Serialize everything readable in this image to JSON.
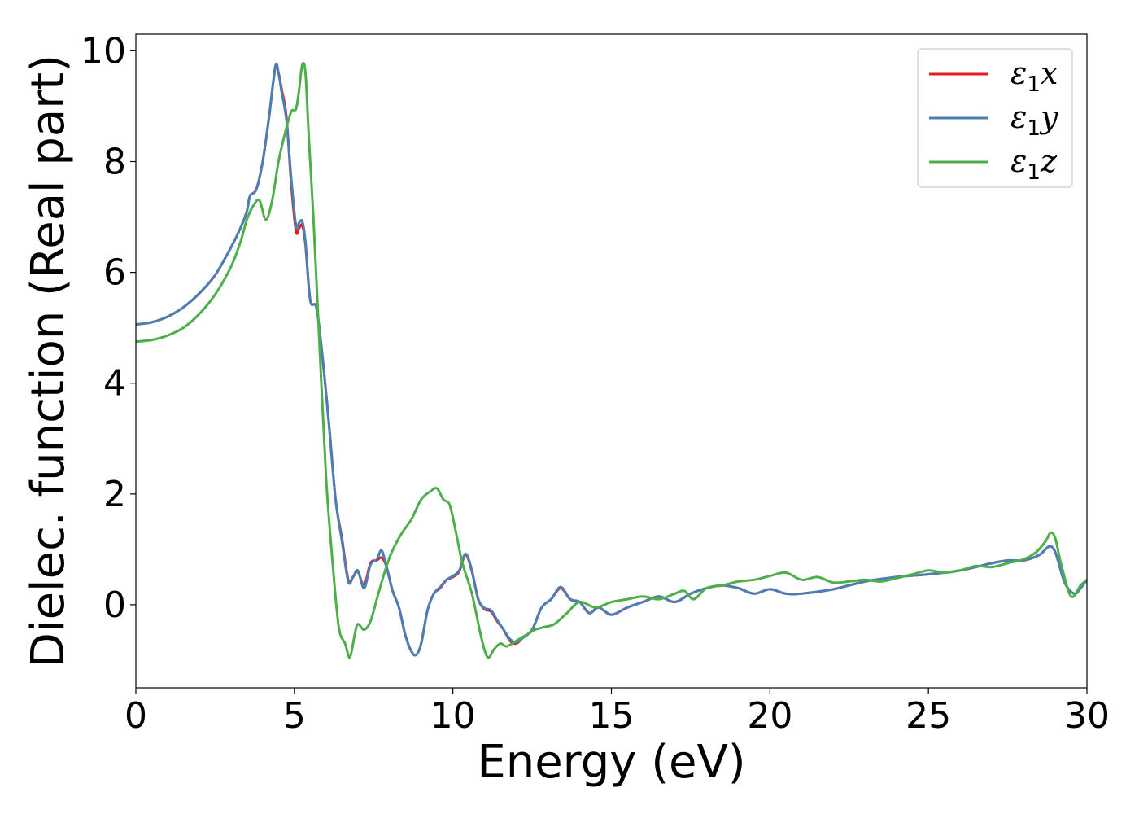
{
  "chart_data": {
    "type": "line",
    "title": "",
    "xlabel": "Energy (eV)",
    "ylabel": "Dielec. function (Real part)",
    "xlim": [
      0,
      30
    ],
    "ylim": [
      -1.5,
      10.3
    ],
    "xticks": [
      0,
      5,
      10,
      15,
      20,
      25,
      30
    ],
    "yticks": [
      0,
      2,
      4,
      6,
      8,
      10
    ],
    "grid": false,
    "legend_position": "top-right",
    "series": [
      {
        "name": "ε1x",
        "legend": {
          "base": "ε",
          "sub": "1",
          "tail": "x"
        },
        "color": "#e41a1c",
        "x": [
          0,
          0.5,
          1,
          1.5,
          2,
          2.5,
          3,
          3.3,
          3.5,
          3.6,
          3.8,
          4.0,
          4.2,
          4.4,
          4.5,
          4.6,
          4.75,
          4.9,
          5.05,
          5.15,
          5.25,
          5.35,
          5.5,
          5.7,
          5.9,
          6.1,
          6.3,
          6.5,
          6.7,
          6.85,
          7.0,
          7.2,
          7.4,
          7.6,
          7.75,
          7.9,
          8.1,
          8.3,
          8.5,
          8.7,
          8.85,
          9.0,
          9.2,
          9.4,
          9.6,
          9.8,
          10.0,
          10.2,
          10.4,
          10.6,
          10.8,
          11.0,
          11.2,
          11.4,
          11.6,
          11.8,
          12.0,
          12.2,
          12.5,
          12.8,
          13.1,
          13.4,
          13.7,
          14.0,
          14.3,
          14.6,
          15.0,
          15.5,
          16.0,
          16.5,
          17.0,
          17.5,
          18.0,
          18.5,
          19.0,
          19.5,
          20.0,
          20.5,
          21.0,
          22.0,
          23.0,
          24.0,
          25.0,
          26.0,
          27.0,
          27.5,
          28.0,
          28.5,
          28.8,
          29.0,
          29.3,
          29.6,
          29.8,
          30.0
        ],
        "y": [
          5.06,
          5.1,
          5.2,
          5.37,
          5.62,
          5.95,
          6.45,
          6.8,
          7.1,
          7.38,
          7.5,
          8.0,
          8.8,
          9.7,
          9.6,
          9.3,
          8.8,
          7.6,
          6.75,
          6.8,
          6.85,
          6.5,
          5.5,
          5.35,
          4.4,
          3.2,
          1.9,
          1.2,
          0.45,
          0.5,
          0.6,
          0.35,
          0.75,
          0.8,
          0.85,
          0.7,
          0.25,
          -0.05,
          -0.55,
          -0.85,
          -0.9,
          -0.7,
          -0.1,
          0.2,
          0.3,
          0.45,
          0.5,
          0.6,
          0.9,
          0.6,
          0.1,
          -0.08,
          -0.12,
          -0.3,
          -0.45,
          -0.65,
          -0.7,
          -0.6,
          -0.45,
          -0.05,
          0.1,
          0.3,
          0.1,
          0.05,
          -0.15,
          -0.05,
          -0.18,
          -0.05,
          0.05,
          0.15,
          0.05,
          0.2,
          0.3,
          0.35,
          0.3,
          0.2,
          0.28,
          0.2,
          0.2,
          0.28,
          0.42,
          0.5,
          0.55,
          0.62,
          0.75,
          0.8,
          0.8,
          0.9,
          1.05,
          0.95,
          0.4,
          0.2,
          0.3,
          0.45
        ]
      },
      {
        "name": "ε1y",
        "legend": {
          "base": "ε",
          "sub": "1",
          "tail": "y"
        },
        "color": "#4a7fb5",
        "x": [
          0,
          0.5,
          1,
          1.5,
          2,
          2.5,
          3,
          3.3,
          3.5,
          3.6,
          3.8,
          4.0,
          4.2,
          4.4,
          4.5,
          4.6,
          4.75,
          4.9,
          5.05,
          5.15,
          5.25,
          5.35,
          5.5,
          5.7,
          5.9,
          6.1,
          6.3,
          6.5,
          6.7,
          6.85,
          7.0,
          7.2,
          7.4,
          7.6,
          7.75,
          7.9,
          8.1,
          8.3,
          8.5,
          8.7,
          8.85,
          9.0,
          9.2,
          9.4,
          9.6,
          9.8,
          10.0,
          10.2,
          10.4,
          10.6,
          10.8,
          11.0,
          11.2,
          11.4,
          11.6,
          11.8,
          12.0,
          12.2,
          12.5,
          12.8,
          13.1,
          13.4,
          13.7,
          14.0,
          14.3,
          14.6,
          15.0,
          15.5,
          16.0,
          16.5,
          17.0,
          17.5,
          18.0,
          18.5,
          19.0,
          19.5,
          20.0,
          20.5,
          21.0,
          22.0,
          23.0,
          24.0,
          25.0,
          26.0,
          27.0,
          27.5,
          28.0,
          28.5,
          28.8,
          29.0,
          29.3,
          29.6,
          29.8,
          30.0
        ],
        "y": [
          5.06,
          5.1,
          5.2,
          5.37,
          5.62,
          5.95,
          6.45,
          6.8,
          7.1,
          7.38,
          7.5,
          8.0,
          8.8,
          9.72,
          9.6,
          9.25,
          8.75,
          7.7,
          6.85,
          6.9,
          6.92,
          6.55,
          5.5,
          5.35,
          4.4,
          3.2,
          1.9,
          1.15,
          0.42,
          0.5,
          0.62,
          0.3,
          0.72,
          0.82,
          0.98,
          0.7,
          0.25,
          -0.05,
          -0.55,
          -0.85,
          -0.9,
          -0.7,
          -0.1,
          0.2,
          0.32,
          0.45,
          0.52,
          0.62,
          0.92,
          0.62,
          0.1,
          -0.06,
          -0.1,
          -0.28,
          -0.45,
          -0.62,
          -0.68,
          -0.6,
          -0.45,
          -0.05,
          0.1,
          0.32,
          0.1,
          0.05,
          -0.15,
          -0.05,
          -0.18,
          -0.05,
          0.05,
          0.15,
          0.05,
          0.2,
          0.3,
          0.35,
          0.3,
          0.2,
          0.28,
          0.2,
          0.2,
          0.28,
          0.42,
          0.5,
          0.55,
          0.62,
          0.75,
          0.8,
          0.8,
          0.9,
          1.05,
          0.95,
          0.4,
          0.2,
          0.3,
          0.45
        ]
      },
      {
        "name": "ε1z",
        "legend": {
          "base": "ε",
          "sub": "1",
          "tail": "z"
        },
        "color": "#4daf4a",
        "x": [
          0,
          0.5,
          1,
          1.5,
          2,
          2.5,
          3,
          3.3,
          3.5,
          3.7,
          3.9,
          4.1,
          4.3,
          4.5,
          4.7,
          4.9,
          5.05,
          5.15,
          5.25,
          5.35,
          5.45,
          5.6,
          5.8,
          6.0,
          6.2,
          6.4,
          6.6,
          6.75,
          6.9,
          7.0,
          7.2,
          7.4,
          7.6,
          7.8,
          8.0,
          8.2,
          8.4,
          8.7,
          9.0,
          9.3,
          9.5,
          9.7,
          9.9,
          10.1,
          10.3,
          10.6,
          10.9,
          11.1,
          11.3,
          11.5,
          11.7,
          12.0,
          12.3,
          12.6,
          12.9,
          13.2,
          13.6,
          14.0,
          14.5,
          15.0,
          15.5,
          16.0,
          16.5,
          17.0,
          17.3,
          17.6,
          18.0,
          18.5,
          19.0,
          19.5,
          20.0,
          20.5,
          21.0,
          21.5,
          22.0,
          22.5,
          23.0,
          23.5,
          24.0,
          24.5,
          25.0,
          25.5,
          26.0,
          26.5,
          27.0,
          27.5,
          28.0,
          28.4,
          28.7,
          28.85,
          29.0,
          29.2,
          29.5,
          29.8,
          30.0
        ],
        "y": [
          4.75,
          4.78,
          4.86,
          5.0,
          5.25,
          5.6,
          6.1,
          6.55,
          6.95,
          7.2,
          7.3,
          6.95,
          7.3,
          8.0,
          8.5,
          8.9,
          8.95,
          9.3,
          9.75,
          9.6,
          8.5,
          7.0,
          4.6,
          2.3,
          0.8,
          -0.4,
          -0.7,
          -0.95,
          -0.55,
          -0.35,
          -0.45,
          -0.3,
          0.1,
          0.5,
          0.85,
          1.1,
          1.3,
          1.55,
          1.9,
          2.05,
          2.1,
          1.9,
          1.8,
          1.3,
          0.75,
          0.2,
          -0.6,
          -0.95,
          -0.8,
          -0.7,
          -0.75,
          -0.65,
          -0.55,
          -0.45,
          -0.4,
          -0.35,
          -0.15,
          0.05,
          -0.05,
          0.05,
          0.1,
          0.15,
          0.1,
          0.2,
          0.25,
          0.1,
          0.3,
          0.35,
          0.42,
          0.45,
          0.52,
          0.58,
          0.45,
          0.5,
          0.4,
          0.42,
          0.45,
          0.42,
          0.48,
          0.55,
          0.62,
          0.58,
          0.62,
          0.7,
          0.68,
          0.75,
          0.82,
          0.95,
          1.15,
          1.3,
          1.2,
          0.7,
          0.15,
          0.35,
          0.45
        ]
      }
    ]
  }
}
